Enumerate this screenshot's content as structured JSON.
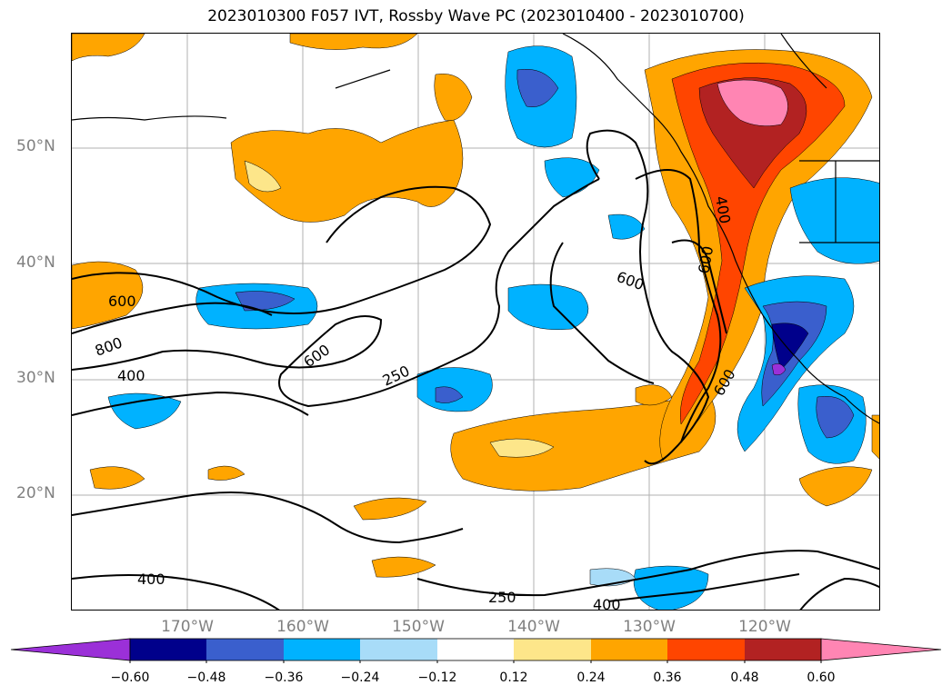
{
  "title": "2023010300 F057 IVT, Rossby Wave PC (2023010400 - 2023010700)",
  "axes": {
    "lat_labels": [
      "50°N",
      "40°N",
      "30°N",
      "20°N"
    ],
    "lon_labels": [
      "170°W",
      "160°W",
      "150°W",
      "140°W",
      "130°W",
      "120°W"
    ]
  },
  "colorbar": {
    "ticks": [
      "−0.60",
      "−0.48",
      "−0.36",
      "−0.24",
      "−0.12",
      "0.12",
      "0.24",
      "0.36",
      "0.48",
      "0.60"
    ],
    "colors": [
      "#9b30d8",
      "#00008b",
      "#3a5fcd",
      "#00b2ff",
      "#a8dcf8",
      "#ffffff",
      "#fde68a",
      "#ffa500",
      "#ff4500",
      "#b22222",
      "#ff85b3"
    ]
  },
  "contour_labels": [
    "600",
    "800",
    "400",
    "600",
    "250",
    "600",
    "400",
    "600",
    "600",
    "250",
    "400",
    "400"
  ],
  "map": {
    "extent_lon": [
      -180,
      -110
    ],
    "extent_lat": [
      10,
      60
    ],
    "gridlines": true
  }
}
